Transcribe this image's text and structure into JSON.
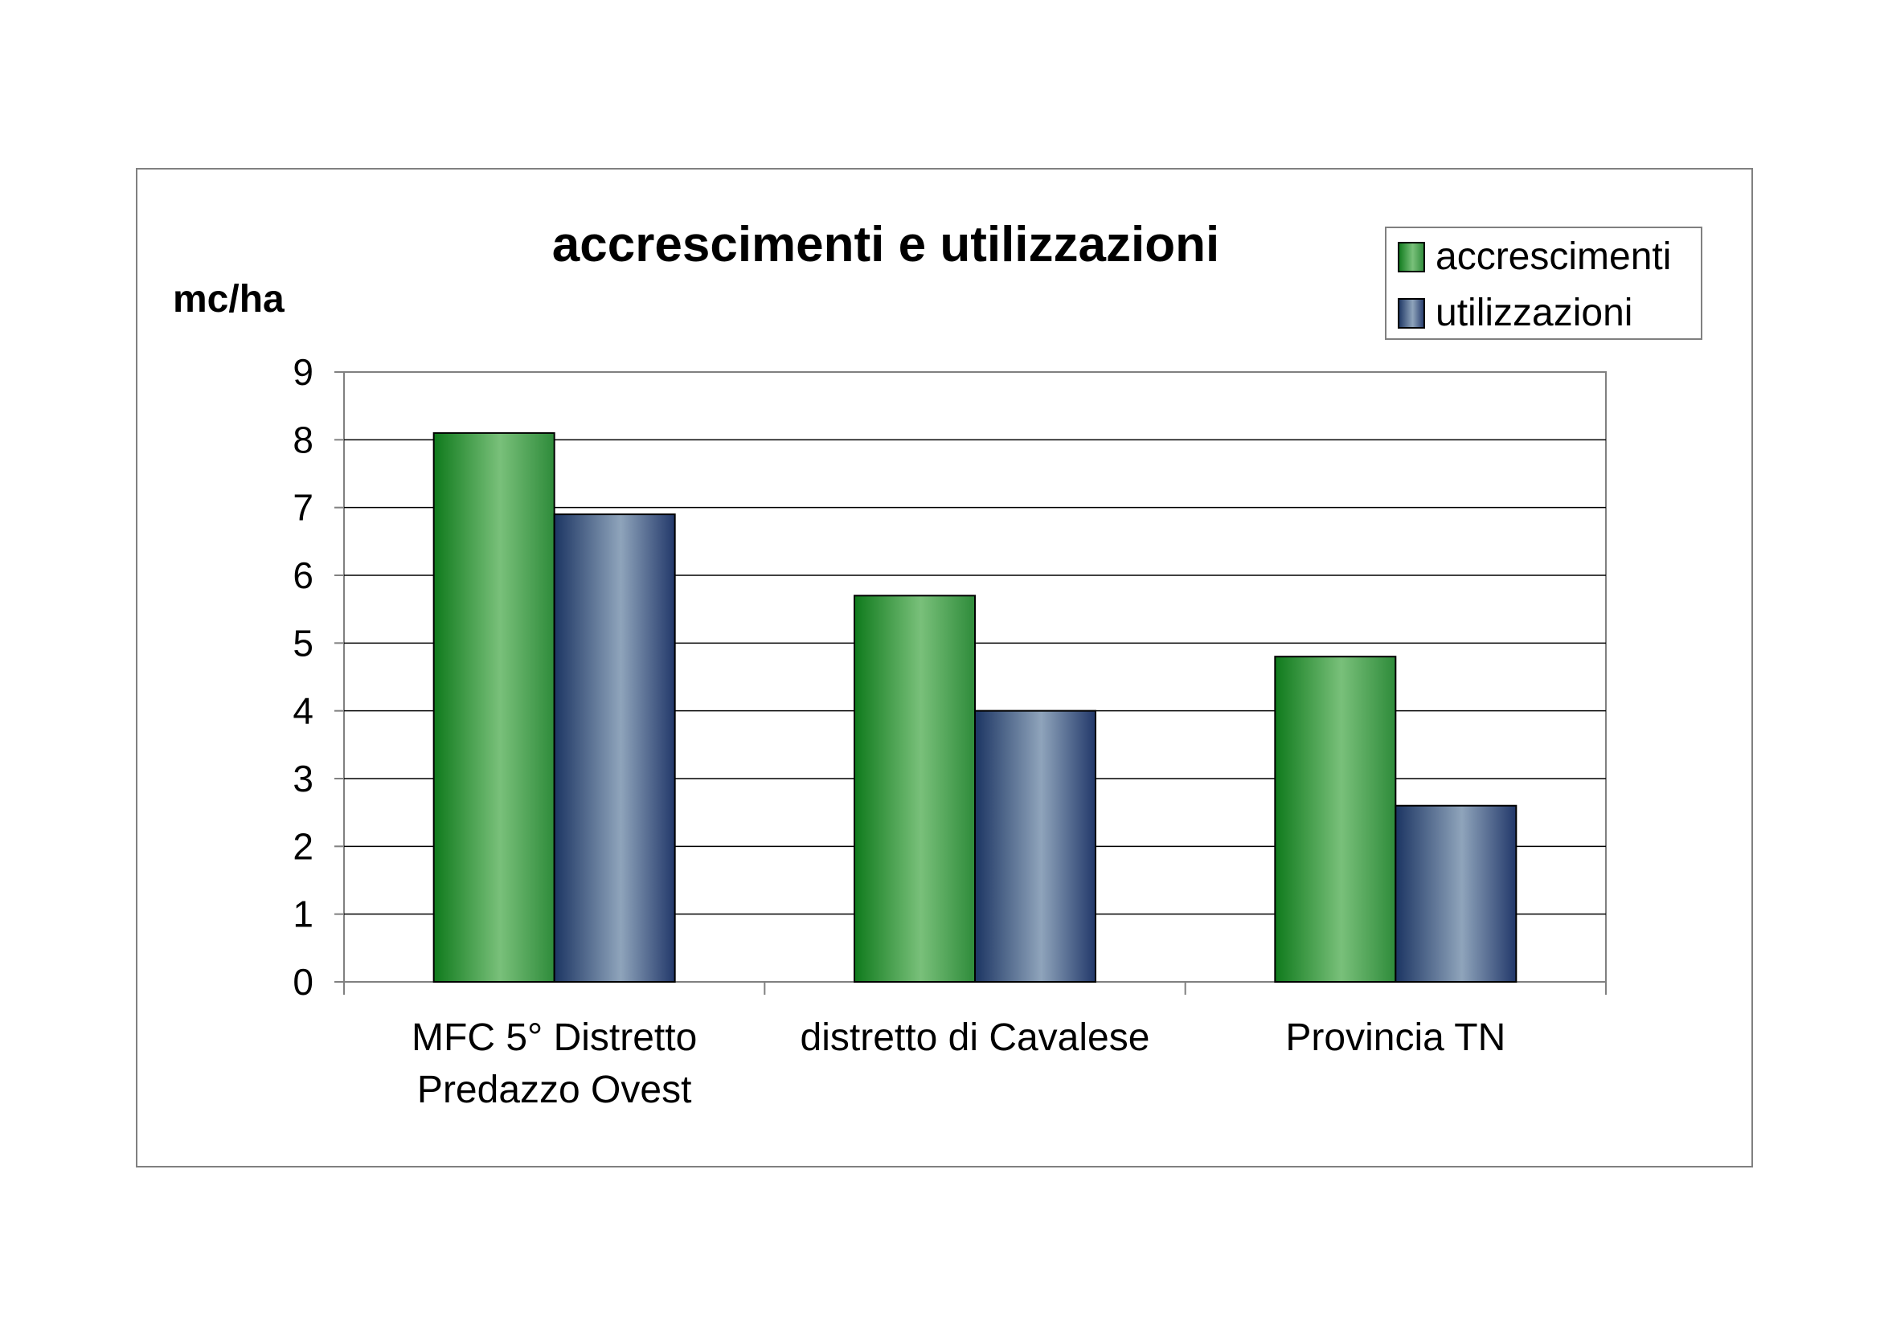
{
  "chart_data": {
    "type": "bar",
    "title": "accrescimenti e utilizzazioni",
    "ylabel": "mc/ha",
    "xlabel": "",
    "ylim": [
      0,
      9
    ],
    "yticks": [
      0,
      1,
      2,
      3,
      4,
      5,
      6,
      7,
      8,
      9
    ],
    "grid": true,
    "legend_position": "top-right",
    "categories": [
      [
        "MFC 5° Distretto",
        "Predazzo Ovest"
      ],
      [
        "distretto di Cavalese"
      ],
      [
        "Provincia TN"
      ]
    ],
    "series": [
      {
        "name": "accrescimenti",
        "values": [
          8.1,
          5.7,
          4.8
        ],
        "color": "#2e8b3a"
      },
      {
        "name": "utilizzazioni",
        "values": [
          6.9,
          4.0,
          2.6
        ],
        "color": "#5a7391"
      }
    ]
  }
}
